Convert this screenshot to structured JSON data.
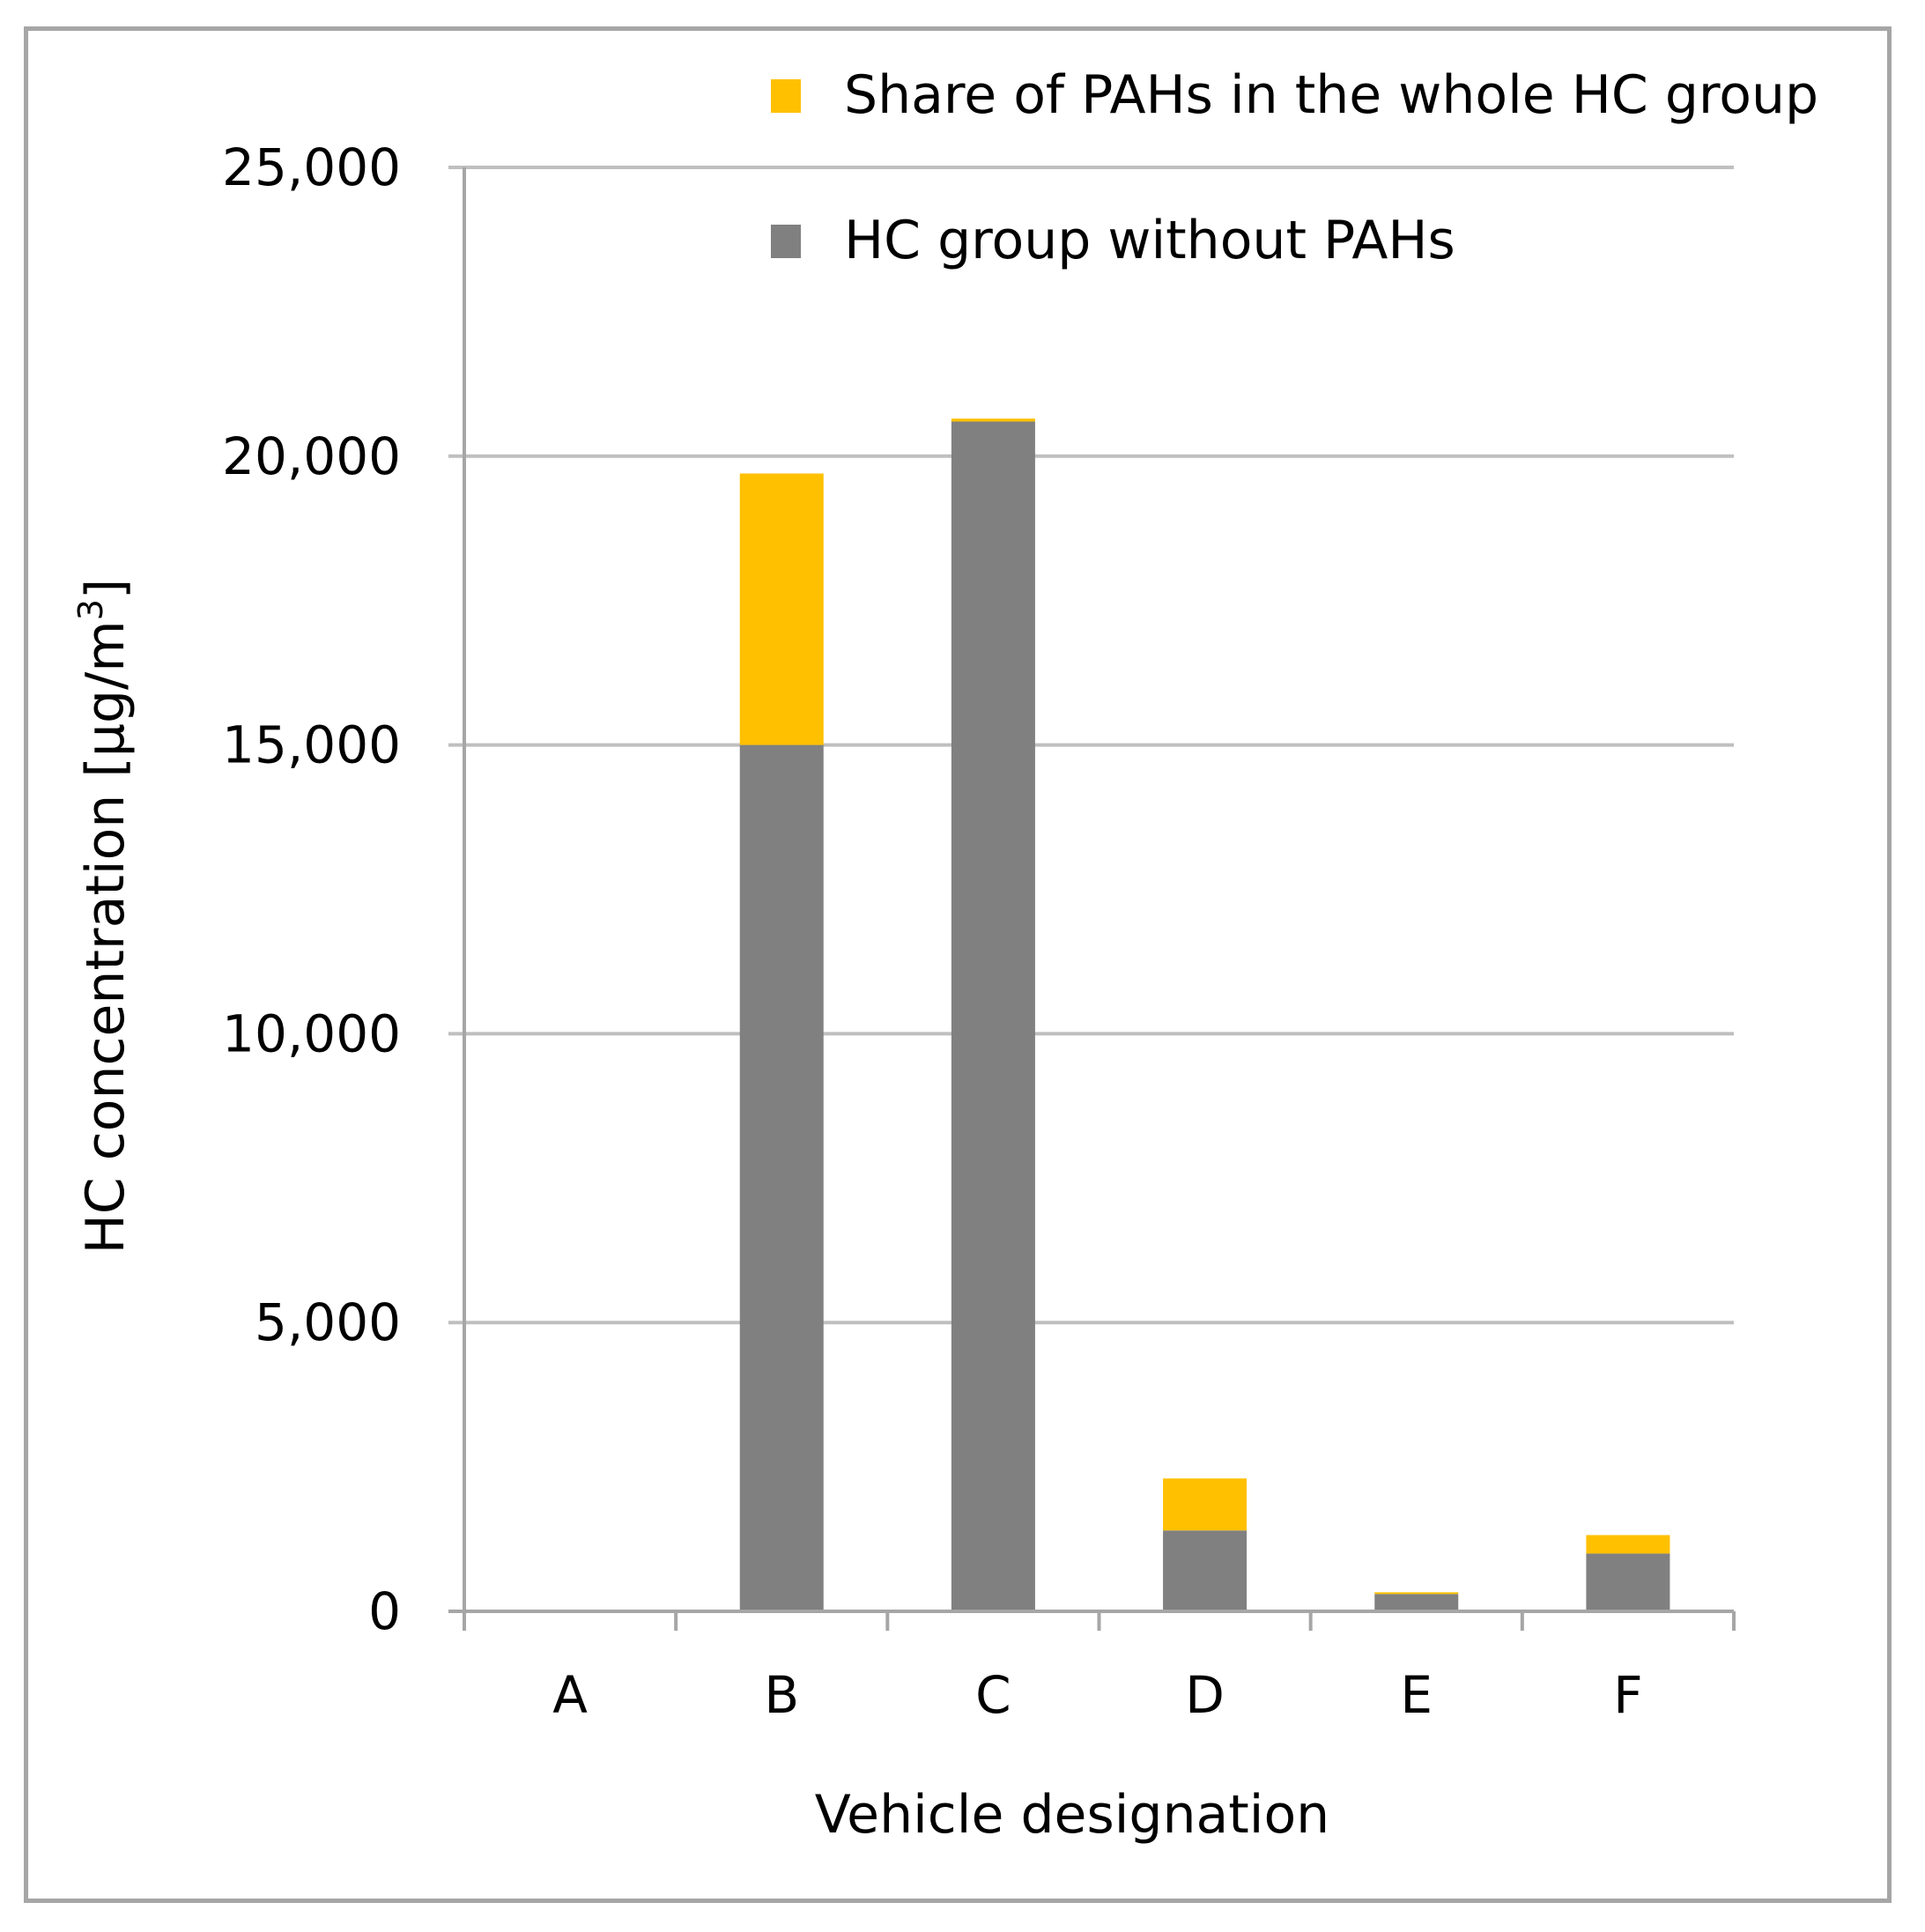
{
  "chart_data": {
    "type": "bar",
    "stacked": true,
    "categories": [
      "A",
      "B",
      "C",
      "D",
      "E",
      "F"
    ],
    "series": [
      {
        "name": "HC group without PAHs",
        "color": "#808080",
        "values": [
          0,
          15000,
          20600,
          1400,
          300,
          1000
        ]
      },
      {
        "name": "Share of PAHs in the whole HC group",
        "color": "#ffc000",
        "values": [
          0,
          4700,
          50,
          900,
          30,
          320
        ]
      }
    ],
    "xlabel": "Vehicle designation",
    "ylabel": "HC concentration [µg/m",
    "ylabel_superscript": "3",
    "ylabel_suffix": "]",
    "ylim": [
      0,
      25000
    ],
    "yticks": [
      0,
      5000,
      10000,
      15000,
      20000,
      25000
    ],
    "ytick_labels": [
      "0",
      "5,000",
      "10,000",
      "15,000",
      "20,000",
      "25,000"
    ],
    "grid": true,
    "gridline_color": "#bfbfbf",
    "legend_position": "top-right"
  }
}
